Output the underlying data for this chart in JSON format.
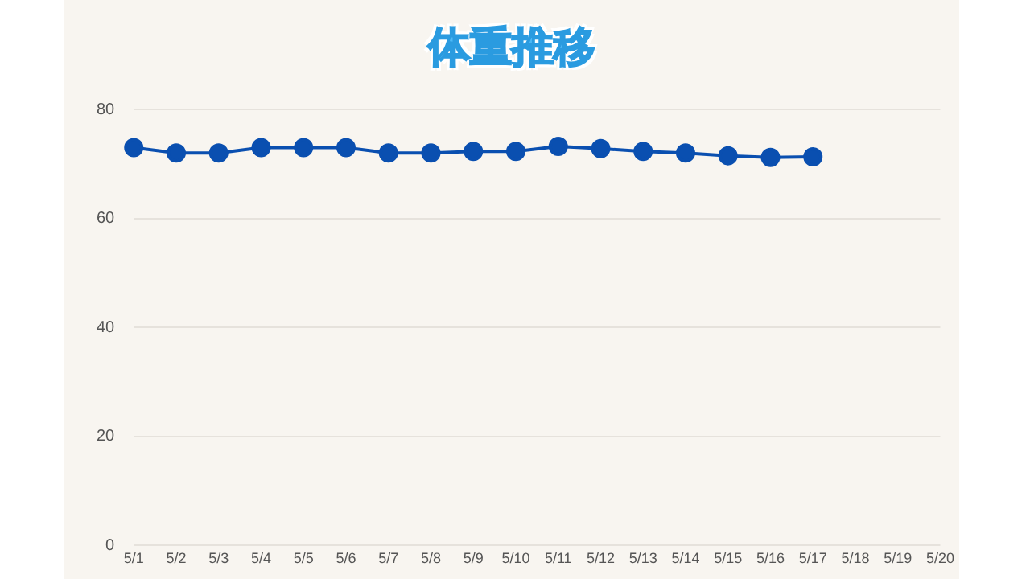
{
  "chart_data": {
    "type": "line",
    "title": "体重推移",
    "categories": [
      "5/1",
      "5/2",
      "5/3",
      "5/4",
      "5/5",
      "5/6",
      "5/7",
      "5/8",
      "5/9",
      "5/10",
      "5/11",
      "5/12",
      "5/13",
      "5/14",
      "5/15",
      "5/16",
      "5/17",
      "5/18",
      "5/19",
      "5/20"
    ],
    "series": [
      {
        "color": "#0a4fb0",
        "values": [
          73,
          72,
          72,
          73,
          73,
          73,
          72,
          72,
          72.3,
          72.3,
          73.2,
          72.8,
          72.3,
          72,
          71.5,
          71.2,
          71.3,
          null,
          null,
          null
        ]
      }
    ],
    "ylim": [
      0,
      80
    ],
    "yticks": [
      0,
      20,
      40,
      60,
      80
    ],
    "grid": "y",
    "legend": false,
    "marker": "circle",
    "line_style": "solid"
  }
}
